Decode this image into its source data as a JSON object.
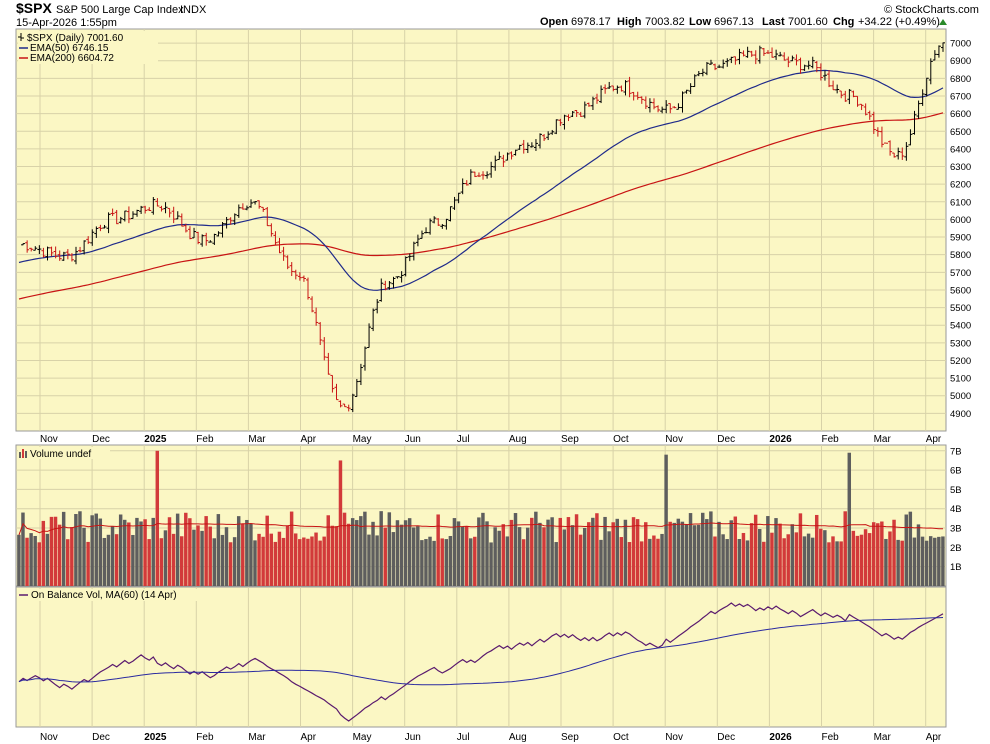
{
  "header": {
    "symbol": "$SPX",
    "name": "S&P 500 Large Cap Index",
    "exchange": "INDX",
    "date": "15-Apr-2026 1:55pm",
    "brand": "© StockCharts.com",
    "open_label": "Open",
    "open": "6978.17",
    "high_label": "High",
    "high": "7003.82",
    "low_label": "Low",
    "low": "6967.13",
    "last_label": "Last",
    "last": "7001.60",
    "chg_label": "Chg",
    "chg": "+34.22 (+0.49%)"
  },
  "legend": {
    "price": "$SPX (Daily) 7001.60",
    "ema50": "EMA(50) 6746.15",
    "ema200": "EMA(200) 6604.72",
    "volume": "Volume undef",
    "obv": "On Balance Vol, MA(60) (14 Apr)"
  },
  "colors": {
    "panel_bg": "#fbf7c4",
    "ema50": "#1f2a8a",
    "ema200": "#c81414",
    "vol_up": "#5e5e5e",
    "vol_down": "#d23a3a",
    "obv": "#5a1a6e",
    "obv_ma": "#2a2aa0"
  },
  "chart_data": [
    {
      "type": "candlestick",
      "panel": "price",
      "series_name": "$SPX",
      "x_axis_months": [
        "Nov",
        "Dec",
        "2025",
        "Feb",
        "Mar",
        "Apr",
        "May",
        "Jun",
        "Jul",
        "Aug",
        "Sep",
        "Oct",
        "Nov",
        "Dec",
        "2026",
        "Feb",
        "Mar",
        "Apr"
      ],
      "y_ticks": [
        4900,
        5000,
        5100,
        5200,
        5300,
        5400,
        5500,
        5600,
        5700,
        5800,
        5900,
        6000,
        6100,
        6200,
        6300,
        6400,
        6500,
        6600,
        6700,
        6800,
        6900,
        7000
      ],
      "ylim": [
        4800,
        7080
      ],
      "close_by_month": [
        {
          "month": "Oct 2024",
          "close": 5860
        },
        {
          "month": "Nov 2024",
          "close": 5790
        },
        {
          "month": "Nov 2024 (late)",
          "close": 6000
        },
        {
          "month": "Dec 2024",
          "close": 6080
        },
        {
          "month": "Jan 2025",
          "close": 5880
        },
        {
          "month": "Feb 2025",
          "close": 6100
        },
        {
          "month": "Mar 2025",
          "close": 5700
        },
        {
          "month": "Apr 2025 (low)",
          "close": 4930
        },
        {
          "month": "May 2025",
          "close": 5650
        },
        {
          "month": "Jun 2025",
          "close": 5980
        },
        {
          "month": "Jul 2025",
          "close": 6280
        },
        {
          "month": "Aug 2025",
          "close": 6430
        },
        {
          "month": "Sep 2025",
          "close": 6610
        },
        {
          "month": "Oct 2025",
          "close": 6760
        },
        {
          "month": "Nov 2025",
          "close": 6620
        },
        {
          "month": "Dec 2025",
          "close": 6860
        },
        {
          "month": "Jan 2026",
          "close": 6940
        },
        {
          "month": "Feb 2026",
          "close": 6880
        },
        {
          "month": "Mar 2026",
          "close": 6700
        },
        {
          "month": "Mar 2026 (low)",
          "close": 6360
        },
        {
          "month": "Apr 2026",
          "close": 7001.6
        }
      ],
      "ema50_last": 6746.15,
      "ema200_last": 6604.72
    },
    {
      "type": "bar",
      "panel": "volume",
      "y_ticks": [
        "1B",
        "2B",
        "3B",
        "4B",
        "5B",
        "6B",
        "7B"
      ],
      "ylim": [
        0,
        7.3
      ],
      "typical_volume": 3.0,
      "spikes": [
        {
          "month": "Dec 2024",
          "value": 7.0
        },
        {
          "month": "Apr 2025",
          "value": 6.5
        },
        {
          "month": "Nov 2025",
          "value": 6.8
        },
        {
          "month": "Mar 2026",
          "value": 6.9
        }
      ]
    },
    {
      "type": "line",
      "panel": "obv",
      "series_name": "On Balance Vol, MA(60)"
    }
  ]
}
